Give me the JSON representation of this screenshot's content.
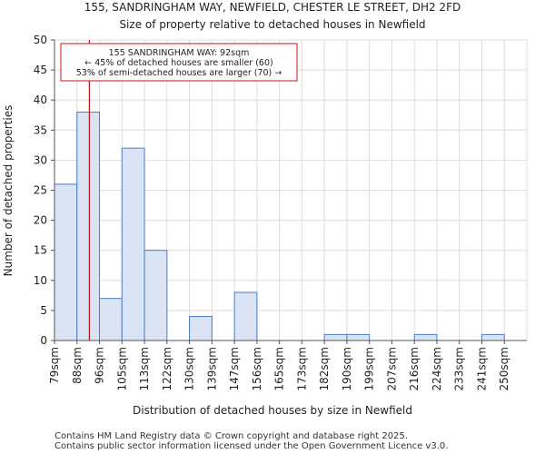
{
  "chart_data": {
    "type": "bar",
    "title": "155, SANDRINGHAM WAY, NEWFIELD, CHESTER LE STREET, DH2 2FD",
    "subtitle": "Size of property relative to detached houses in Newfield",
    "xlabel": "Distribution of detached houses by size in Newfield",
    "ylabel": "Number of detached properties",
    "ylim": [
      0,
      50
    ],
    "yticks": [
      0,
      5,
      10,
      15,
      20,
      25,
      30,
      35,
      40,
      45,
      50
    ],
    "categories": [
      "79sqm",
      "88sqm",
      "96sqm",
      "105sqm",
      "113sqm",
      "122sqm",
      "130sqm",
      "139sqm",
      "147sqm",
      "156sqm",
      "165sqm",
      "173sqm",
      "182sqm",
      "190sqm",
      "199sqm",
      "207sqm",
      "216sqm",
      "224sqm",
      "233sqm",
      "241sqm",
      "250sqm"
    ],
    "values": [
      26,
      38,
      7,
      32,
      15,
      0,
      4,
      0,
      8,
      0,
      0,
      0,
      1,
      1,
      0,
      0,
      1,
      0,
      0,
      1,
      0
    ],
    "highlight_index": 1,
    "property_bin_position": 0.55,
    "grid": true,
    "colors": {
      "bar_fill": "#dbe4f5",
      "bar_highlight_fill": "#dbe4f5",
      "bar_stroke": "#4a7cc7",
      "marker": "#c0161a",
      "grid": "#dddddd",
      "axis": "#555555"
    },
    "annotation": {
      "lines": [
        "155 SANDRINGHAM WAY: 92sqm",
        "← 45% of detached houses are smaller (60)",
        "53% of semi-detached houses are larger (70) →"
      ]
    }
  },
  "footer": {
    "line1": "Contains HM Land Registry data © Crown copyright and database right 2025.",
    "line2": "Contains public sector information licensed under the Open Government Licence v3.0."
  }
}
